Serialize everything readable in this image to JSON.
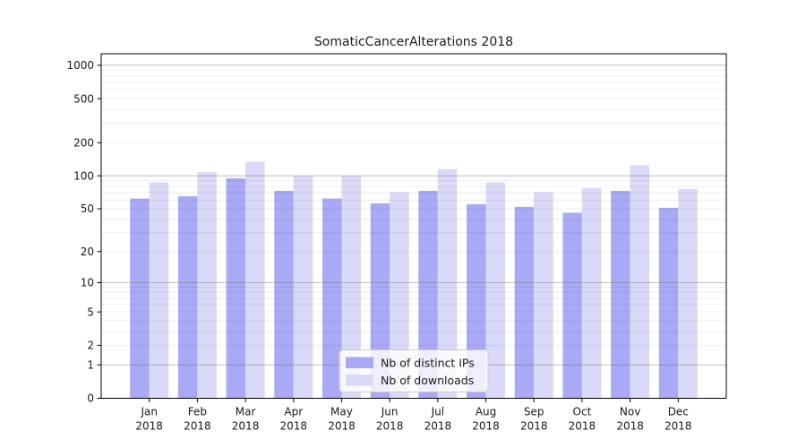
{
  "figure": {
    "title": "SomaticCancerAlterations 2018"
  },
  "chart_data": {
    "type": "bar",
    "title": "SomaticCancerAlterations 2018",
    "categories": [
      "Jan",
      "Feb",
      "Mar",
      "Apr",
      "May",
      "Jun",
      "Jul",
      "Aug",
      "Sep",
      "Oct",
      "Nov",
      "Dec"
    ],
    "category_year": "2018",
    "series": [
      {
        "name": "Nb of distinct IPs",
        "color": "#a9a9f5",
        "values": [
          62,
          65,
          95,
          73,
          62,
          56,
          73,
          55,
          52,
          46,
          73,
          51
        ]
      },
      {
        "name": "Nb of downloads",
        "color": "#d9d9f8",
        "values": [
          87,
          108,
          134,
          100,
          100,
          71,
          115,
          87,
          71,
          77,
          125,
          76
        ]
      }
    ],
    "xlabel": "",
    "ylabel": "",
    "yscale": "log1p",
    "ylim": [
      0,
      1270
    ],
    "yticks": [
      0,
      1,
      2,
      5,
      10,
      20,
      50,
      100,
      200,
      500,
      1000
    ],
    "grid": {
      "on": true,
      "major_at": [
        1,
        10,
        100,
        1000
      ],
      "minor_at": [
        2,
        3,
        4,
        5,
        6,
        7,
        8,
        9,
        20,
        30,
        40,
        50,
        60,
        70,
        80,
        90,
        200,
        300,
        400,
        500,
        600,
        700,
        800,
        900
      ],
      "major_color": "rgba(110,110,110,0.45)",
      "minor_color": "rgba(0,0,0,0.065)"
    },
    "legend": {
      "position": "lower-center",
      "entries": [
        "Nb of distinct IPs",
        "Nb of downloads"
      ]
    },
    "colors": {
      "spine": "#000000",
      "tick_label": "#1a1a1a",
      "legend_border": "#cccccc",
      "legend_bg": "rgba(255,255,255,0.8)"
    }
  }
}
